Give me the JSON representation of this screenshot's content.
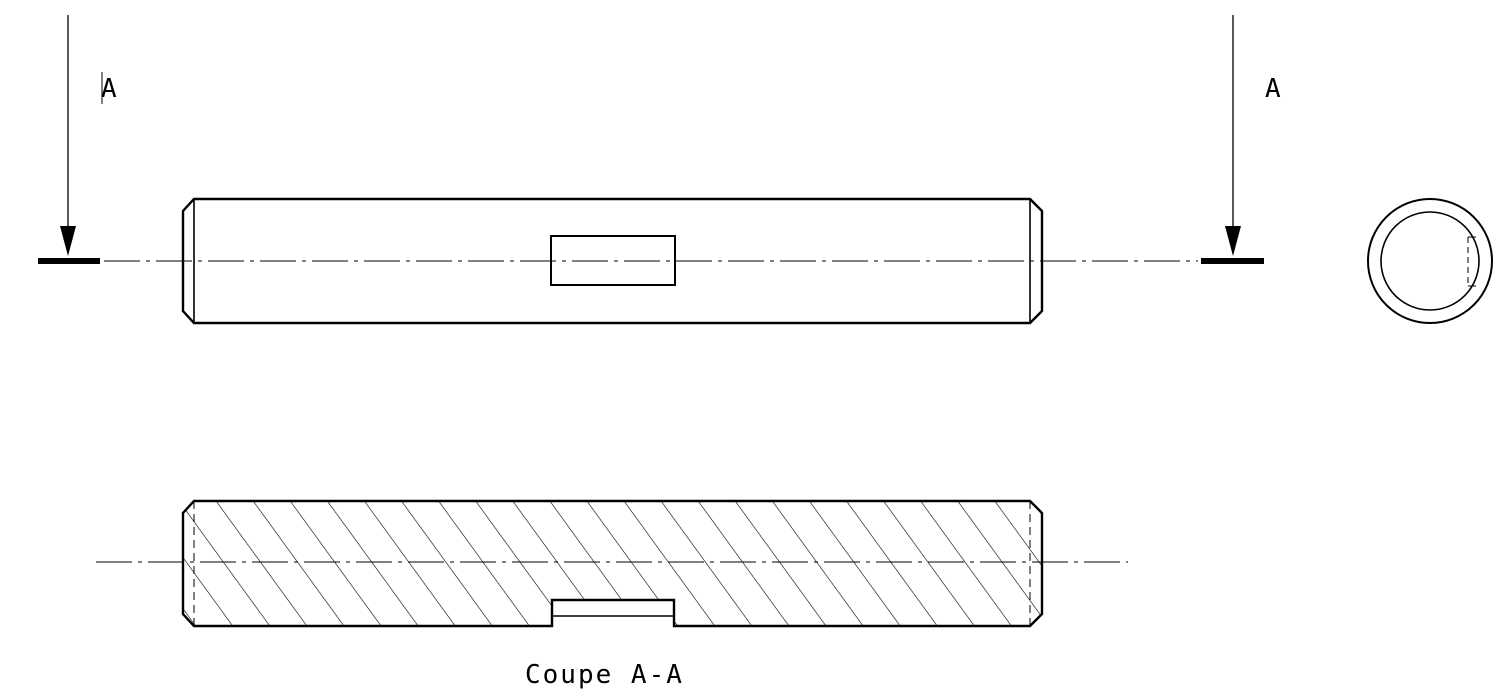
{
  "drawing": {
    "section_label_left": "A",
    "section_label_right": "A",
    "section_title": "Coupe A-A"
  },
  "colors": {
    "ink": "#000000",
    "paper": "#ffffff"
  }
}
